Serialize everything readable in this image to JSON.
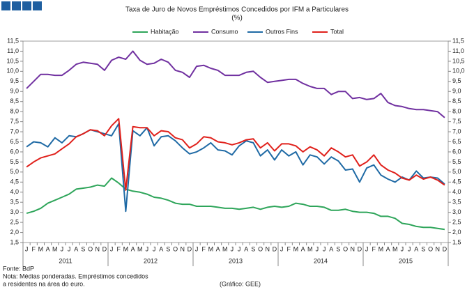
{
  "chart_data": {
    "type": "line",
    "title": "Taxa de Juro de Novos Empréstimos Concedidos por IFM a Particulares",
    "subtitle": "(%)",
    "categories": [
      "J",
      "F",
      "M",
      "A",
      "M",
      "J",
      "J",
      "A",
      "S",
      "O",
      "N",
      "D",
      "J",
      "F",
      "M",
      "A",
      "M",
      "J",
      "J",
      "A",
      "S",
      "O",
      "N",
      "D",
      "J",
      "F",
      "M",
      "A",
      "M",
      "J",
      "J",
      "A",
      "S",
      "O",
      "N",
      "D",
      "J",
      "F",
      "M",
      "A",
      "M",
      "J",
      "J",
      "A",
      "S",
      "O",
      "N",
      "D",
      "J",
      "F",
      "M",
      "A",
      "M",
      "J",
      "J",
      "A",
      "S",
      "O",
      "N",
      "D"
    ],
    "years": [
      "2011",
      "2012",
      "2013",
      "2014",
      "2015"
    ],
    "series": [
      {
        "name": "Habitação",
        "color": "#2ea55a",
        "values": [
          2.95,
          3.05,
          3.2,
          3.45,
          3.6,
          3.75,
          3.9,
          4.15,
          4.2,
          4.25,
          4.35,
          4.3,
          4.7,
          4.45,
          4.15,
          4.05,
          4.0,
          3.9,
          3.75,
          3.7,
          3.6,
          3.45,
          3.4,
          3.4,
          3.3,
          3.3,
          3.3,
          3.25,
          3.2,
          3.2,
          3.15,
          3.2,
          3.25,
          3.15,
          3.25,
          3.3,
          3.25,
          3.3,
          3.45,
          3.4,
          3.3,
          3.3,
          3.25,
          3.1,
          3.1,
          3.15,
          3.05,
          3.0,
          3.0,
          2.95,
          2.8,
          2.8,
          2.7,
          2.45,
          2.4,
          2.3,
          2.25,
          2.25,
          2.2,
          2.15
        ]
      },
      {
        "name": "Consumo",
        "color": "#7030a0",
        "values": [
          9.15,
          9.5,
          9.85,
          9.85,
          9.8,
          9.8,
          10.05,
          10.35,
          10.45,
          10.4,
          10.35,
          10.05,
          10.55,
          10.7,
          10.6,
          11.0,
          10.55,
          10.35,
          10.4,
          10.6,
          10.45,
          10.05,
          9.95,
          9.7,
          10.25,
          10.3,
          10.15,
          10.05,
          9.8,
          9.8,
          9.8,
          9.95,
          10.0,
          9.7,
          9.45,
          9.5,
          9.55,
          9.6,
          9.6,
          9.4,
          9.25,
          9.15,
          9.15,
          8.85,
          9.0,
          9.0,
          8.65,
          8.7,
          8.6,
          8.65,
          8.9,
          8.45,
          8.3,
          8.25,
          8.15,
          8.1,
          8.1,
          8.05,
          8.0,
          7.7
        ]
      },
      {
        "name": "Outros Fins",
        "color": "#1f6aa5",
        "values": [
          6.25,
          6.5,
          6.45,
          6.25,
          6.7,
          6.45,
          6.8,
          6.75,
          6.9,
          7.1,
          7.0,
          6.9,
          6.8,
          7.4,
          3.05,
          7.05,
          6.8,
          7.2,
          6.3,
          6.75,
          6.8,
          6.55,
          6.2,
          5.9,
          6.0,
          6.2,
          6.45,
          6.1,
          6.05,
          5.85,
          6.3,
          6.55,
          6.45,
          5.8,
          6.1,
          5.6,
          6.1,
          5.8,
          6.0,
          5.35,
          5.85,
          5.75,
          5.4,
          5.75,
          5.55,
          5.1,
          5.15,
          4.5,
          5.2,
          5.35,
          4.85,
          4.65,
          4.5,
          4.75,
          4.6,
          5.05,
          4.7,
          4.75,
          4.7,
          4.4
        ]
      },
      {
        "name": "Total",
        "color": "#e0201b",
        "values": [
          5.25,
          5.5,
          5.7,
          5.8,
          5.9,
          6.15,
          6.4,
          6.75,
          6.9,
          7.1,
          7.05,
          6.8,
          7.3,
          7.65,
          4.1,
          7.25,
          7.2,
          7.2,
          6.8,
          7.05,
          7.0,
          6.7,
          6.6,
          6.2,
          6.4,
          6.75,
          6.7,
          6.5,
          6.45,
          6.35,
          6.45,
          6.6,
          6.65,
          6.2,
          6.45,
          6.05,
          6.4,
          6.4,
          6.3,
          6.0,
          6.25,
          6.1,
          5.8,
          6.2,
          6.0,
          5.75,
          5.85,
          5.3,
          5.5,
          5.85,
          5.35,
          5.1,
          4.95,
          4.7,
          4.6,
          4.85,
          4.65,
          4.75,
          4.6,
          4.35
        ]
      }
    ],
    "ylim": [
      1.5,
      11.5
    ],
    "yticks": [
      {
        "value": 1.5,
        "label": "1,5"
      },
      {
        "value": 2.0,
        "label": "2,0"
      },
      {
        "value": 2.5,
        "label": "2,5"
      },
      {
        "value": 3.0,
        "label": "3,0"
      },
      {
        "value": 3.5,
        "label": "3,5"
      },
      {
        "value": 4.0,
        "label": "4,0"
      },
      {
        "value": 4.5,
        "label": "4,5"
      },
      {
        "value": 5.0,
        "label": "5,0"
      },
      {
        "value": 5.5,
        "label": "5,5"
      },
      {
        "value": 6.0,
        "label": "6,0"
      },
      {
        "value": 6.5,
        "label": "6,5"
      },
      {
        "value": 7.0,
        "label": "7,0"
      },
      {
        "value": 7.5,
        "label": "7,5"
      },
      {
        "value": 8.0,
        "label": "8,0"
      },
      {
        "value": 8.5,
        "label": "8,5"
      },
      {
        "value": 9.0,
        "label": "9,0"
      },
      {
        "value": 9.5,
        "label": "9,5"
      },
      {
        "value": 10.0,
        "label": "10,0"
      },
      {
        "value": 10.5,
        "label": "10,5"
      },
      {
        "value": 11.0,
        "label": "11,0"
      },
      {
        "value": 11.5,
        "label": "11,5"
      }
    ],
    "y2lim": [
      1.5,
      11.5
    ],
    "y2ticks": [
      {
        "value": 1.5,
        "label": "1,5"
      },
      {
        "value": 2.0,
        "label": "2,0"
      },
      {
        "value": 2.5,
        "label": "2,5"
      },
      {
        "value": 3.0,
        "label": "3,0"
      },
      {
        "value": 3.5,
        "label": "3,5"
      },
      {
        "value": 4.0,
        "label": "4,0"
      },
      {
        "value": 4.5,
        "label": "4,5"
      },
      {
        "value": 5.0,
        "label": "5,0"
      },
      {
        "value": 5.5,
        "label": "5,5"
      },
      {
        "value": 6.0,
        "label": "6,0"
      },
      {
        "value": 6.5,
        "label": "6,5"
      },
      {
        "value": 7.0,
        "label": "7,0"
      },
      {
        "value": 7.5,
        "label": "7,5"
      },
      {
        "value": 8.0,
        "label": "8,0"
      },
      {
        "value": 8.5,
        "label": "8,5"
      },
      {
        "value": 9.0,
        "label": "9,0"
      },
      {
        "value": 9.5,
        "label": "9,5"
      },
      {
        "value": 10.0,
        "label": "10,0"
      },
      {
        "value": 10.5,
        "label": "10,5"
      },
      {
        "value": 11.0,
        "label": "11,0"
      },
      {
        "value": 11.5,
        "label": "11,5"
      }
    ],
    "grid": false,
    "legend": "top",
    "source": "Fonte: BdP",
    "note": [
      "Nota: Médias ponderadas.  Empréstimos concedidos",
      "a residentes na área do euro."
    ],
    "credit": "(Gráfico: GEE)"
  }
}
